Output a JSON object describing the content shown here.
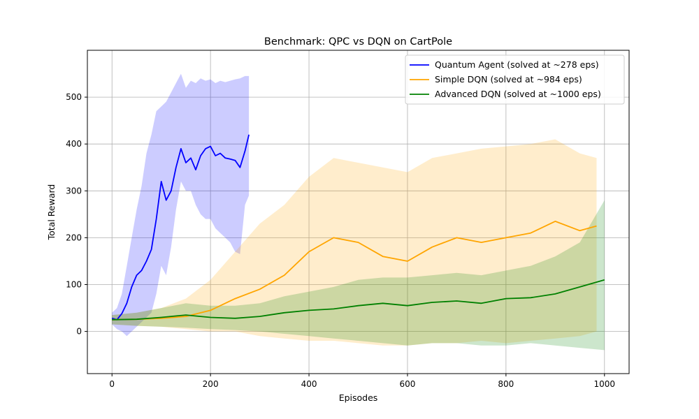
{
  "chart_data": {
    "type": "line",
    "title": "Benchmark: QPC vs DQN on CartPole",
    "xlabel": "Episodes",
    "ylabel": "Total Reward",
    "xlim": [
      -50,
      1050
    ],
    "ylim": [
      -90,
      600
    ],
    "xticks": [
      0,
      200,
      400,
      600,
      800,
      1000
    ],
    "yticks": [
      0,
      100,
      200,
      300,
      400,
      500
    ],
    "grid": true,
    "legend_position": "top-right",
    "series": [
      {
        "name": "Quantum Agent (solved at ~278 eps)",
        "color": "#0000ff",
        "mean": [
          [
            0,
            28
          ],
          [
            10,
            25
          ],
          [
            20,
            38
          ],
          [
            30,
            60
          ],
          [
            40,
            95
          ],
          [
            50,
            120
          ],
          [
            60,
            130
          ],
          [
            70,
            150
          ],
          [
            80,
            175
          ],
          [
            90,
            240
          ],
          [
            100,
            320
          ],
          [
            110,
            280
          ],
          [
            120,
            300
          ],
          [
            130,
            350
          ],
          [
            140,
            390
          ],
          [
            150,
            360
          ],
          [
            160,
            370
          ],
          [
            170,
            345
          ],
          [
            180,
            375
          ],
          [
            190,
            390
          ],
          [
            200,
            395
          ],
          [
            210,
            375
          ],
          [
            220,
            380
          ],
          [
            230,
            370
          ],
          [
            240,
            368
          ],
          [
            250,
            365
          ],
          [
            260,
            350
          ],
          [
            270,
            385
          ],
          [
            278,
            420
          ]
        ],
        "upper": [
          [
            0,
            40
          ],
          [
            10,
            50
          ],
          [
            20,
            80
          ],
          [
            30,
            140
          ],
          [
            40,
            200
          ],
          [
            50,
            260
          ],
          [
            60,
            310
          ],
          [
            70,
            380
          ],
          [
            80,
            420
          ],
          [
            90,
            470
          ],
          [
            100,
            480
          ],
          [
            110,
            490
          ],
          [
            120,
            510
          ],
          [
            130,
            530
          ],
          [
            140,
            550
          ],
          [
            150,
            520
          ],
          [
            160,
            535
          ],
          [
            170,
            530
          ],
          [
            180,
            540
          ],
          [
            190,
            535
          ],
          [
            200,
            538
          ],
          [
            210,
            530
          ],
          [
            220,
            535
          ],
          [
            230,
            532
          ],
          [
            240,
            535
          ],
          [
            250,
            538
          ],
          [
            260,
            540
          ],
          [
            270,
            545
          ],
          [
            278,
            545
          ]
        ],
        "lower": [
          [
            0,
            15
          ],
          [
            10,
            5
          ],
          [
            20,
            0
          ],
          [
            30,
            -10
          ],
          [
            40,
            0
          ],
          [
            50,
            10
          ],
          [
            60,
            20
          ],
          [
            70,
            30
          ],
          [
            80,
            40
          ],
          [
            90,
            80
          ],
          [
            100,
            140
          ],
          [
            110,
            120
          ],
          [
            120,
            180
          ],
          [
            130,
            260
          ],
          [
            140,
            320
          ],
          [
            150,
            300
          ],
          [
            160,
            300
          ],
          [
            170,
            270
          ],
          [
            180,
            250
          ],
          [
            190,
            240
          ],
          [
            200,
            240
          ],
          [
            210,
            220
          ],
          [
            220,
            210
          ],
          [
            230,
            200
          ],
          [
            240,
            190
          ],
          [
            250,
            170
          ],
          [
            260,
            165
          ],
          [
            270,
            270
          ],
          [
            278,
            290
          ]
        ]
      },
      {
        "name": "Simple DQN (solved at ~984 eps)",
        "color": "#ffa500",
        "mean": [
          [
            0,
            25
          ],
          [
            50,
            26
          ],
          [
            100,
            28
          ],
          [
            150,
            32
          ],
          [
            200,
            45
          ],
          [
            250,
            70
          ],
          [
            300,
            90
          ],
          [
            350,
            120
          ],
          [
            400,
            170
          ],
          [
            450,
            200
          ],
          [
            500,
            190
          ],
          [
            550,
            160
          ],
          [
            600,
            150
          ],
          [
            650,
            180
          ],
          [
            700,
            200
          ],
          [
            750,
            190
          ],
          [
            800,
            200
          ],
          [
            850,
            210
          ],
          [
            900,
            235
          ],
          [
            950,
            215
          ],
          [
            984,
            225
          ]
        ],
        "upper": [
          [
            0,
            35
          ],
          [
            50,
            40
          ],
          [
            100,
            50
          ],
          [
            150,
            70
          ],
          [
            200,
            110
          ],
          [
            250,
            170
          ],
          [
            300,
            230
          ],
          [
            350,
            270
          ],
          [
            400,
            330
          ],
          [
            450,
            370
          ],
          [
            500,
            360
          ],
          [
            550,
            350
          ],
          [
            600,
            340
          ],
          [
            650,
            370
          ],
          [
            700,
            380
          ],
          [
            750,
            390
          ],
          [
            800,
            395
          ],
          [
            850,
            400
          ],
          [
            900,
            410
          ],
          [
            950,
            380
          ],
          [
            984,
            370
          ]
        ],
        "lower": [
          [
            0,
            15
          ],
          [
            50,
            12
          ],
          [
            100,
            10
          ],
          [
            150,
            5
          ],
          [
            200,
            0
          ],
          [
            250,
            0
          ],
          [
            300,
            -10
          ],
          [
            350,
            -15
          ],
          [
            400,
            -20
          ],
          [
            450,
            -20
          ],
          [
            500,
            -25
          ],
          [
            550,
            -30
          ],
          [
            600,
            -30
          ],
          [
            650,
            -25
          ],
          [
            700,
            -25
          ],
          [
            750,
            -20
          ],
          [
            800,
            -25
          ],
          [
            850,
            -20
          ],
          [
            900,
            -15
          ],
          [
            950,
            -10
          ],
          [
            984,
            0
          ]
        ]
      },
      {
        "name": "Advanced DQN (solved at ~1000 eps)",
        "color": "#008000",
        "mean": [
          [
            0,
            25
          ],
          [
            50,
            26
          ],
          [
            100,
            30
          ],
          [
            150,
            35
          ],
          [
            200,
            30
          ],
          [
            250,
            28
          ],
          [
            300,
            32
          ],
          [
            350,
            40
          ],
          [
            400,
            45
          ],
          [
            450,
            48
          ],
          [
            500,
            55
          ],
          [
            550,
            60
          ],
          [
            600,
            55
          ],
          [
            650,
            62
          ],
          [
            700,
            65
          ],
          [
            750,
            60
          ],
          [
            800,
            70
          ],
          [
            850,
            72
          ],
          [
            900,
            80
          ],
          [
            950,
            95
          ],
          [
            1000,
            110
          ]
        ],
        "upper": [
          [
            0,
            35
          ],
          [
            50,
            40
          ],
          [
            100,
            50
          ],
          [
            150,
            60
          ],
          [
            200,
            55
          ],
          [
            250,
            55
          ],
          [
            300,
            60
          ],
          [
            350,
            75
          ],
          [
            400,
            85
          ],
          [
            450,
            95
          ],
          [
            500,
            110
          ],
          [
            550,
            115
          ],
          [
            600,
            115
          ],
          [
            650,
            120
          ],
          [
            700,
            125
          ],
          [
            750,
            120
          ],
          [
            800,
            130
          ],
          [
            850,
            140
          ],
          [
            900,
            160
          ],
          [
            950,
            190
          ],
          [
            1000,
            280
          ]
        ],
        "lower": [
          [
            0,
            15
          ],
          [
            50,
            12
          ],
          [
            100,
            10
          ],
          [
            150,
            8
          ],
          [
            200,
            5
          ],
          [
            250,
            3
          ],
          [
            300,
            0
          ],
          [
            350,
            -5
          ],
          [
            400,
            -10
          ],
          [
            450,
            -15
          ],
          [
            500,
            -20
          ],
          [
            550,
            -25
          ],
          [
            600,
            -30
          ],
          [
            650,
            -25
          ],
          [
            700,
            -25
          ],
          [
            750,
            -30
          ],
          [
            800,
            -30
          ],
          [
            850,
            -25
          ],
          [
            900,
            -30
          ],
          [
            950,
            -35
          ],
          [
            1000,
            -40
          ]
        ]
      }
    ]
  }
}
